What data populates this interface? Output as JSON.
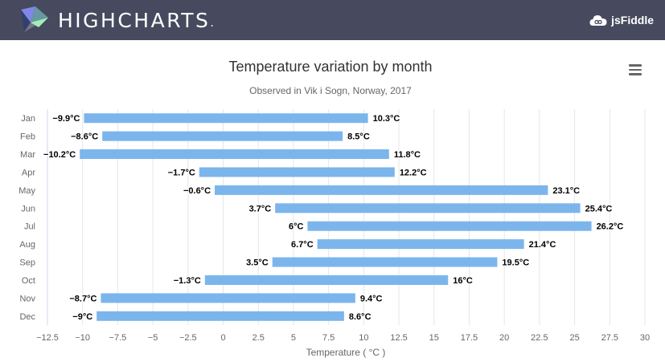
{
  "topbar": {
    "brand": "HIGHCHARTS",
    "brand_mark": ".",
    "jsfiddle_label": "jsFiddle",
    "background": "#474a5e"
  },
  "menu": {
    "icon": "hamburger-menu-icon"
  },
  "chart_data": {
    "type": "bar",
    "variant": "columnrange",
    "orientation": "horizontal",
    "title": "Temperature variation by month",
    "subtitle": "Observed in Vik i Sogn, Norway, 2017",
    "xlabel": "",
    "ylabel": "Temperature ( °C )",
    "unit": "°C",
    "color": "#7cb5ec",
    "categories": [
      "Jan",
      "Feb",
      "Mar",
      "Apr",
      "May",
      "Jun",
      "Jul",
      "Aug",
      "Sep",
      "Oct",
      "Nov",
      "Dec"
    ],
    "series": [
      {
        "low": [
          -9.9,
          -8.6,
          -10.2,
          -1.7,
          -0.6,
          3.7,
          6,
          6.7,
          3.5,
          -1.3,
          -8.7,
          -9
        ],
        "high": [
          10.3,
          8.5,
          11.8,
          12.2,
          23.1,
          25.4,
          26.2,
          21.4,
          19.5,
          16,
          9.4,
          8.6
        ]
      }
    ],
    "ylim": [
      -12.5,
      30
    ],
    "ticks": [
      -12.5,
      -10,
      -7.5,
      -5,
      -2.5,
      0,
      2.5,
      5,
      7.5,
      10,
      12.5,
      15,
      17.5,
      20,
      22.5,
      25,
      27.5,
      30
    ],
    "tick_labels": [
      "−12.5",
      "−10",
      "−7.5",
      "−5",
      "−2.5",
      "0",
      "2.5",
      "5",
      "7.5",
      "10",
      "12.5",
      "15",
      "17.5",
      "20",
      "22.5",
      "25",
      "27.5",
      "30"
    ],
    "grid": true,
    "legend": "none"
  }
}
